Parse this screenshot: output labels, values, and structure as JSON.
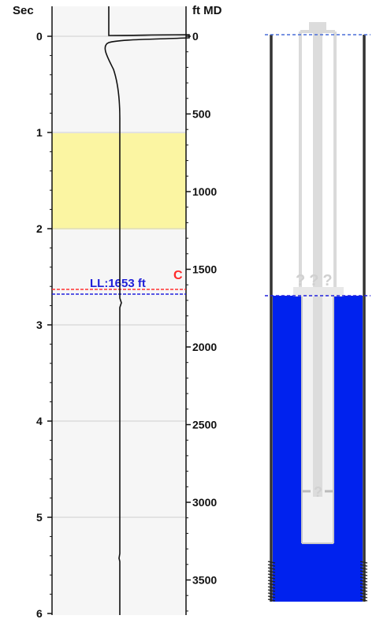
{
  "left_axis": {
    "title": "Sec",
    "range": [
      0,
      6
    ],
    "ticks": [
      "0",
      "1",
      "2",
      "3",
      "4",
      "5",
      "6"
    ]
  },
  "right_axis": {
    "title": "ft MD",
    "range": [
      0,
      3760
    ],
    "ticks": [
      "0",
      "500",
      "1000",
      "1500",
      "2000",
      "2500",
      "3000",
      "3500"
    ]
  },
  "highlight_band": {
    "from_sec": 1.0,
    "to_sec": 2.0,
    "color": "#fbf5a2"
  },
  "liquid_level": {
    "label": "LL:1653 ft",
    "depth_ft": 1653,
    "color": "#1f1fd9"
  },
  "collar_marker": {
    "label": "C",
    "color": "#ff2a2a"
  },
  "wellbore": {
    "unknown_marker_top": "???",
    "unknown_marker_bottom": "?",
    "fluid_color": "#0022ee",
    "tubing_color": "#d8d8d8"
  },
  "colors": {
    "plot_background": "#f6f6f6",
    "gridline": "#cfcfcf",
    "trace": "#111111"
  }
}
